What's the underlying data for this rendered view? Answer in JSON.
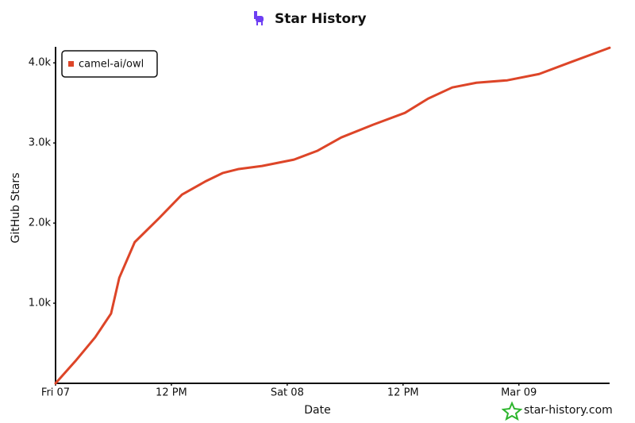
{
  "chart_data": {
    "type": "line",
    "title": "Star History",
    "xlabel": "Date",
    "ylabel": "GitHub Stars",
    "watermark": "star-history.com",
    "legend": "top-left",
    "x": [
      0,
      2.05,
      4.1,
      5.75,
      6.6,
      8.2,
      10.7,
      13.1,
      15.6,
      17.3,
      18.9,
      21.4,
      24.7,
      27.1,
      29.6,
      32.9,
      36.2,
      38.6,
      41.1,
      43.6,
      46.8,
      50.1,
      53.4,
      57.4
    ],
    "series": [
      {
        "name": "camel-ai/owl",
        "color": "#dd4528",
        "values": [
          0,
          277,
          574,
          871,
          1317,
          1762,
          2059,
          2356,
          2525,
          2624,
          2673,
          2713,
          2792,
          2901,
          3069,
          3228,
          3376,
          3554,
          3693,
          3752,
          3782,
          3861,
          4010,
          4188
        ]
      }
    ],
    "xlim": [
      0,
      57.4
    ],
    "xticks": [
      {
        "value": 0,
        "label": "Fri 07"
      },
      {
        "value": 12,
        "label": "12 PM"
      },
      {
        "value": 24,
        "label": "Sat 08"
      },
      {
        "value": 36,
        "label": "12 PM"
      },
      {
        "value": 48,
        "label": "Mar 09"
      }
    ],
    "ylim": [
      0,
      4200
    ],
    "yticks": [
      {
        "value": 1000,
        "label": "1.0k"
      },
      {
        "value": 2000,
        "label": "2.0k"
      },
      {
        "value": 3000,
        "label": "3.0k"
      },
      {
        "value": 4000,
        "label": "4.0k"
      }
    ]
  }
}
